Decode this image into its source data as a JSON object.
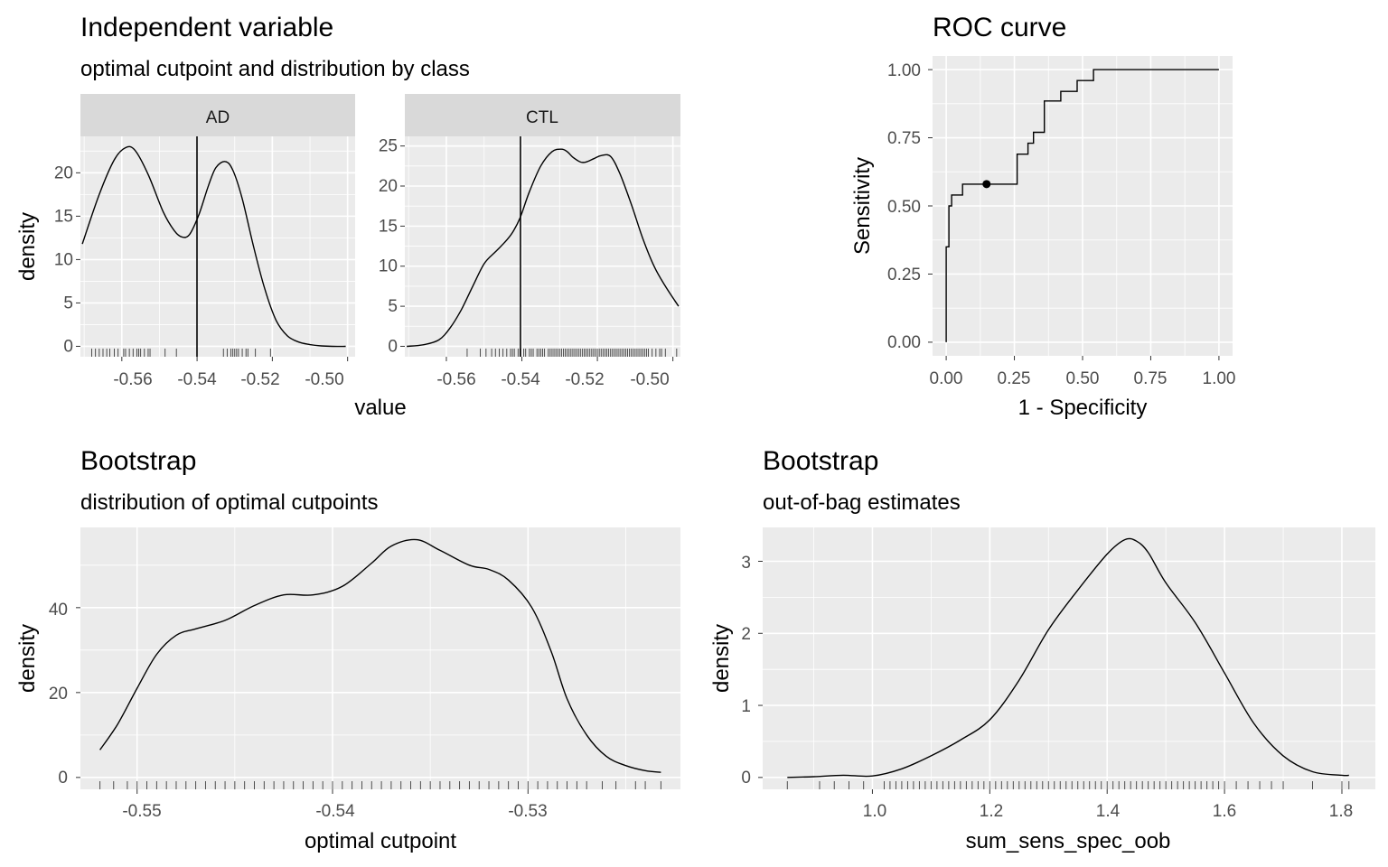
{
  "figure": {
    "panels": {
      "independent": {
        "title": "Independent variable",
        "subtitle": "optimal cutpoint and distribution by class",
        "x_title": "value",
        "y_title": "density",
        "x_ticks": [
          "-0.56",
          "-0.54",
          "-0.52",
          "-0.50"
        ]
      },
      "roc": {
        "title": "ROC curve",
        "x_title": "1 - Specificity",
        "y_title": "Sensitivity",
        "x_ticks": [
          "0.00",
          "0.25",
          "0.50",
          "0.75",
          "1.00"
        ],
        "y_ticks": [
          "0.00",
          "0.25",
          "0.50",
          "0.75",
          "1.00"
        ]
      },
      "boot_cut": {
        "title": "Bootstrap",
        "subtitle": "distribution of optimal cutpoints",
        "x_title": "optimal cutpoint",
        "y_title": "density",
        "x_ticks": [
          "-0.55",
          "-0.54",
          "-0.53"
        ],
        "y_ticks": [
          "0",
          "20",
          "40"
        ]
      },
      "boot_oob": {
        "title": "Bootstrap",
        "subtitle": "out-of-bag estimates",
        "x_title": "sum_sens_spec_oob",
        "y_title": "density",
        "x_ticks": [
          "1.0",
          "1.2",
          "1.4",
          "1.6",
          "1.8"
        ],
        "y_ticks": [
          "0",
          "1",
          "2",
          "3"
        ]
      }
    },
    "colors": {
      "panel_bg": "#ebebeb",
      "grid": "#ffffff",
      "strip_bg": "#d9d9d9",
      "line": "#000000",
      "tick_text": "#4d4d4d"
    }
  },
  "chart_data": [
    {
      "type": "line",
      "subtype": "density",
      "facet": "AD",
      "title": "Independent variable",
      "subtitle": "optimal cutpoint and distribution by class",
      "xlabel": "value",
      "ylabel": "density",
      "xlim": [
        -0.571,
        -0.498
      ],
      "ylim": [
        -1.2,
        24.2
      ],
      "y_ticks": [
        "0",
        "5",
        "10",
        "15",
        "20"
      ],
      "cutpoint": -0.54,
      "x": [
        -0.5705,
        -0.566,
        -0.562,
        -0.559,
        -0.5565,
        -0.553,
        -0.549,
        -0.546,
        -0.544,
        -0.542,
        -0.5395,
        -0.537,
        -0.535,
        -0.5325,
        -0.5305,
        -0.528,
        -0.525,
        -0.522,
        -0.519,
        -0.516,
        -0.513,
        -0.51,
        -0.507,
        -0.504,
        -0.5005
      ],
      "y": [
        11.8,
        17.5,
        21.5,
        22.9,
        22.6,
        19.8,
        15.5,
        13.3,
        12.6,
        12.9,
        15.2,
        18.5,
        20.6,
        21.3,
        20.3,
        17.0,
        11.5,
        6.6,
        3.0,
        1.2,
        0.5,
        0.2,
        0.05,
        0.0,
        0.0
      ],
      "rug": [
        -0.568,
        -0.567,
        -0.566,
        -0.565,
        -0.564,
        -0.5632,
        -0.562,
        -0.561,
        -0.5595,
        -0.559,
        -0.558,
        -0.557,
        -0.556,
        -0.5555,
        -0.555,
        -0.554,
        -0.553,
        -0.5525,
        -0.5485,
        -0.5455,
        -0.533,
        -0.532,
        -0.531,
        -0.5305,
        -0.53,
        -0.5295,
        -0.529,
        -0.528,
        -0.527,
        -0.5265,
        -0.5245,
        -0.5205
      ]
    },
    {
      "type": "line",
      "subtype": "density",
      "facet": "CTL",
      "xlabel": "value",
      "ylabel": "density",
      "xlim": [
        -0.571,
        -0.498
      ],
      "ylim": [
        -1.3,
        26.2
      ],
      "y_ticks": [
        "0",
        "5",
        "10",
        "15",
        "20",
        "25"
      ],
      "cutpoint": -0.54,
      "x": [
        -0.5705,
        -0.566,
        -0.562,
        -0.559,
        -0.556,
        -0.553,
        -0.55,
        -0.547,
        -0.5445,
        -0.5425,
        -0.5405,
        -0.538,
        -0.535,
        -0.532,
        -0.5295,
        -0.528,
        -0.5265,
        -0.5245,
        -0.523,
        -0.521,
        -0.519,
        -0.5165,
        -0.514,
        -0.511,
        -0.508,
        -0.505,
        -0.502,
        -0.4985
      ],
      "y": [
        0.0,
        0.2,
        0.8,
        2.3,
        4.6,
        7.5,
        10.3,
        11.8,
        13.0,
        14.2,
        16.0,
        19.3,
        22.5,
        24.3,
        24.6,
        24.3,
        23.6,
        23.0,
        23.0,
        23.4,
        23.8,
        23.7,
        21.5,
        17.7,
        13.5,
        10.0,
        7.5,
        5.0
      ],
      "rug": [
        -0.5545,
        -0.551,
        -0.5495,
        -0.548,
        -0.547,
        -0.546,
        -0.545,
        -0.544,
        -0.543,
        -0.5425,
        -0.542,
        -0.541,
        -0.5405,
        -0.5395,
        -0.539,
        -0.538,
        -0.5375,
        -0.537,
        -0.536,
        -0.5355,
        -0.535,
        -0.5345,
        -0.534,
        -0.533,
        -0.5325,
        -0.532,
        -0.5315,
        -0.531,
        -0.5305,
        -0.53,
        -0.5295,
        -0.529,
        -0.5285,
        -0.528,
        -0.5275,
        -0.527,
        -0.5265,
        -0.526,
        -0.5255,
        -0.525,
        -0.5245,
        -0.524,
        -0.5235,
        -0.523,
        -0.5225,
        -0.522,
        -0.5215,
        -0.521,
        -0.5205,
        -0.52,
        -0.5195,
        -0.519,
        -0.5185,
        -0.518,
        -0.5175,
        -0.517,
        -0.5165,
        -0.516,
        -0.5155,
        -0.515,
        -0.5145,
        -0.514,
        -0.5135,
        -0.513,
        -0.5125,
        -0.512,
        -0.5115,
        -0.511,
        -0.5105,
        -0.51,
        -0.5095,
        -0.509,
        -0.5085,
        -0.508,
        -0.5075,
        -0.507,
        -0.5065,
        -0.5055,
        -0.5045,
        -0.5035,
        -0.503,
        -0.502,
        -0.499
      ]
    },
    {
      "type": "line",
      "subtype": "roc",
      "title": "ROC curve",
      "xlabel": "1 - Specificity",
      "ylabel": "Sensitivity",
      "xlim": [
        -0.05,
        1.05
      ],
      "ylim": [
        -0.05,
        1.05
      ],
      "x": [
        0.0,
        0.0,
        0.01,
        0.01,
        0.02,
        0.02,
        0.06,
        0.06,
        0.26,
        0.26,
        0.3,
        0.3,
        0.32,
        0.32,
        0.36,
        0.36,
        0.42,
        0.42,
        0.48,
        0.48,
        0.54,
        0.54,
        1.0
      ],
      "y": [
        0.0,
        0.35,
        0.35,
        0.5,
        0.5,
        0.54,
        0.54,
        0.58,
        0.58,
        0.69,
        0.69,
        0.73,
        0.73,
        0.77,
        0.77,
        0.885,
        0.885,
        0.92,
        0.92,
        0.96,
        0.96,
        1.0,
        1.0
      ],
      "optimal_point": {
        "x": 0.148,
        "y": 0.58
      }
    },
    {
      "type": "line",
      "subtype": "density",
      "title": "Bootstrap",
      "subtitle": "distribution of optimal cutpoints",
      "xlabel": "optimal cutpoint",
      "ylabel": "density",
      "xlim": [
        -0.5529,
        -0.5222
      ],
      "ylim": [
        -2.8,
        58.9
      ],
      "x": [
        -0.5519,
        -0.551,
        -0.55,
        -0.549,
        -0.548,
        -0.547,
        -0.5455,
        -0.544,
        -0.5425,
        -0.541,
        -0.5395,
        -0.538,
        -0.537,
        -0.5357,
        -0.5345,
        -0.533,
        -0.532,
        -0.531,
        -0.5298,
        -0.5288,
        -0.528,
        -0.527,
        -0.526,
        -0.525,
        -0.524,
        -0.5232
      ],
      "y": [
        6.5,
        12.5,
        21.0,
        29.0,
        33.5,
        35.0,
        37.0,
        40.5,
        43.0,
        43.0,
        45.0,
        50.5,
        54.5,
        56.0,
        53.5,
        50.0,
        49.0,
        46.5,
        40.0,
        29.5,
        18.5,
        10.0,
        5.0,
        2.8,
        1.6,
        1.2
      ],
      "rug": [
        -0.5519,
        -0.5512,
        -0.5505,
        -0.55,
        -0.5495,
        -0.549,
        -0.5485,
        -0.548,
        -0.5475,
        -0.547,
        -0.5465,
        -0.546,
        -0.5455,
        -0.545,
        -0.5445,
        -0.544,
        -0.5435,
        -0.543,
        -0.5425,
        -0.542,
        -0.5415,
        -0.541,
        -0.5405,
        -0.54,
        -0.5395,
        -0.539,
        -0.5385,
        -0.538,
        -0.5375,
        -0.537,
        -0.5365,
        -0.536,
        -0.5355,
        -0.535,
        -0.5345,
        -0.534,
        -0.5335,
        -0.533,
        -0.5325,
        -0.532,
        -0.5315,
        -0.531,
        -0.5305,
        -0.53,
        -0.5295,
        -0.529,
        -0.5285,
        -0.528,
        -0.5275,
        -0.527,
        -0.5262,
        -0.5255,
        -0.5245,
        -0.524,
        -0.5232
      ]
    },
    {
      "type": "line",
      "subtype": "density",
      "title": "Bootstrap",
      "subtitle": "out-of-bag estimates",
      "xlabel": "sum_sens_spec_oob",
      "ylabel": "density",
      "xlim": [
        0.813,
        1.857
      ],
      "ylim": [
        -0.165,
        3.47
      ],
      "x": [
        0.855,
        0.9,
        0.95,
        1.0,
        1.05,
        1.1,
        1.15,
        1.2,
        1.25,
        1.3,
        1.35,
        1.4,
        1.43,
        1.45,
        1.47,
        1.5,
        1.55,
        1.6,
        1.65,
        1.7,
        1.75,
        1.8,
        1.812
      ],
      "y": [
        0.0,
        0.01,
        0.03,
        0.02,
        0.12,
        0.3,
        0.52,
        0.8,
        1.35,
        2.05,
        2.6,
        3.1,
        3.3,
        3.28,
        3.12,
        2.7,
        2.15,
        1.45,
        0.75,
        0.3,
        0.08,
        0.03,
        0.03
      ],
      "rug": [
        0.855,
        0.91,
        0.935,
        0.96,
        0.985,
        1.02,
        1.03,
        1.04,
        1.05,
        1.06,
        1.07,
        1.08,
        1.09,
        1.1,
        1.11,
        1.12,
        1.13,
        1.14,
        1.15,
        1.16,
        1.17,
        1.18,
        1.19,
        1.2,
        1.21,
        1.22,
        1.23,
        1.24,
        1.25,
        1.26,
        1.27,
        1.28,
        1.29,
        1.3,
        1.31,
        1.32,
        1.33,
        1.34,
        1.35,
        1.36,
        1.37,
        1.38,
        1.39,
        1.4,
        1.41,
        1.42,
        1.43,
        1.44,
        1.45,
        1.46,
        1.47,
        1.48,
        1.49,
        1.5,
        1.51,
        1.52,
        1.53,
        1.54,
        1.55,
        1.56,
        1.57,
        1.58,
        1.59,
        1.6,
        1.62,
        1.64,
        1.66,
        1.68,
        1.7,
        1.75,
        1.8,
        1.812
      ]
    }
  ]
}
